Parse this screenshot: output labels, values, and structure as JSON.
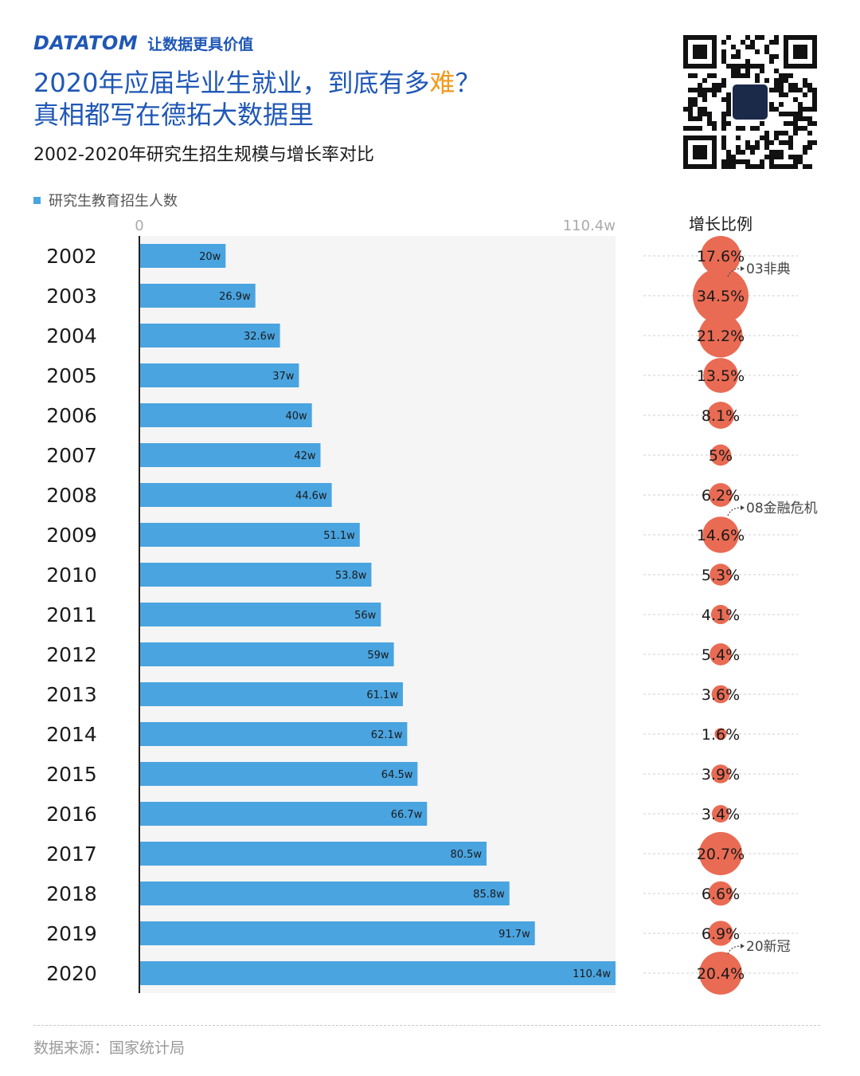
{
  "brand": {
    "name": "DATATOM",
    "slogan": "让数据更具价值"
  },
  "headline": {
    "line1_pre": "2020年应届毕业生就业，到底有多",
    "line1_hl": "难",
    "line1_post": "？",
    "line2": "真相都写在德拓大数据里"
  },
  "subtitle": "2002-2020年研究生招生规模与增长率对比",
  "legend_label": "研究生教育招生人数",
  "growth_header": "增长比例",
  "source": "数据来源：国家统计局",
  "colors": {
    "bar": "#4aa4e0",
    "bubble": "#e96b54",
    "title": "#1f57b6",
    "highlight": "#f29a1e"
  },
  "chart_data": {
    "type": "bar",
    "orientation": "horizontal",
    "categories": [
      "2002",
      "2003",
      "2004",
      "2005",
      "2006",
      "2007",
      "2008",
      "2009",
      "2010",
      "2011",
      "2012",
      "2013",
      "2014",
      "2015",
      "2016",
      "2017",
      "2018",
      "2019",
      "2020"
    ],
    "values": [
      20,
      26.9,
      32.6,
      37,
      40,
      42,
      44.6,
      51.1,
      53.8,
      56,
      59,
      61.1,
      62.1,
      64.5,
      66.7,
      80.5,
      85.8,
      91.7,
      110.4
    ],
    "value_labels": [
      "20w",
      "26.9w",
      "32.6w",
      "37w",
      "40w",
      "42w",
      "44.6w",
      "51.1w",
      "53.8w",
      "56w",
      "59w",
      "61.1w",
      "62.1w",
      "64.5w",
      "66.7w",
      "80.5w",
      "85.8w",
      "91.7w",
      "110.4w"
    ],
    "xlim": [
      0,
      110.4
    ],
    "axis_min_label": "0",
    "axis_max_label": "110.4w",
    "growth": [
      17.6,
      34.5,
      21.2,
      13.5,
      8.1,
      5,
      6.2,
      14.6,
      5.3,
      4.1,
      5.4,
      3.6,
      1.6,
      3.9,
      3.4,
      20.7,
      6.6,
      6.9,
      20.4
    ],
    "growth_labels": [
      "17.6%",
      "34.5%",
      "21.2%",
      "13.5%",
      "8.1%",
      "5%",
      "6.2%",
      "14.6%",
      "5.3%",
      "4.1%",
      "5.4%",
      "3.6%",
      "1.6%",
      "3.9%",
      "3.4%",
      "20.7%",
      "6.6%",
      "6.9%",
      "20.4%"
    ],
    "annotations": [
      {
        "year": "2002",
        "text": "03非典"
      },
      {
        "year": "2008",
        "text": "08金融危机"
      },
      {
        "year": "2019",
        "text": "20新冠"
      }
    ]
  }
}
